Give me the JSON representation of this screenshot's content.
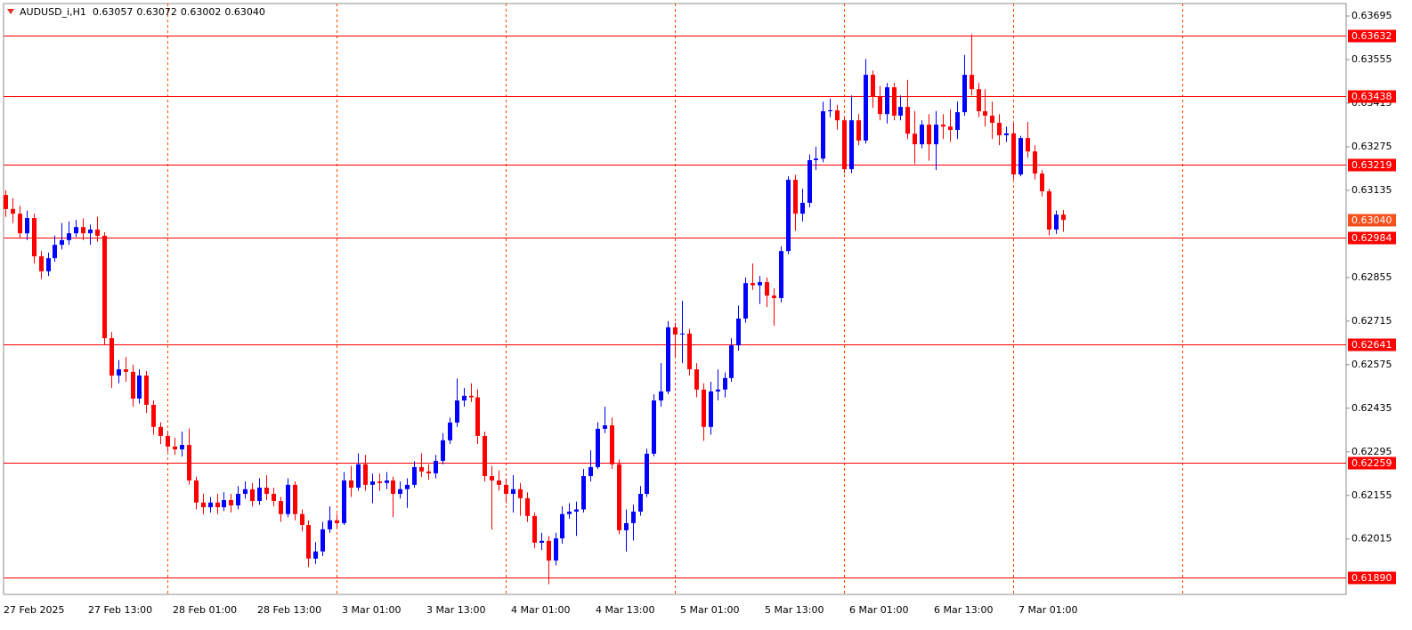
{
  "chart_data": {
    "type": "candlestick",
    "title": "AUDUSD_i,H1",
    "ohlc_labels": [
      "0.63057",
      "0.63072",
      "0.63002",
      "0.63040"
    ],
    "categories": [
      "27 Feb 2025",
      null,
      null,
      null,
      null,
      null,
      null,
      null,
      null,
      null,
      null,
      null,
      "27 Feb 13:00",
      null,
      null,
      null,
      null,
      null,
      null,
      null,
      null,
      null,
      null,
      null,
      "28 Feb 01:00",
      null,
      null,
      null,
      null,
      null,
      null,
      null,
      null,
      null,
      null,
      null,
      "28 Feb 13:00",
      null,
      null,
      null,
      null,
      null,
      null,
      null,
      null,
      null,
      null,
      null,
      "3 Mar 01:00",
      null,
      null,
      null,
      null,
      null,
      null,
      null,
      null,
      null,
      null,
      null,
      "3 Mar 13:00",
      null,
      null,
      null,
      null,
      null,
      null,
      null,
      null,
      null,
      null,
      null,
      "4 Mar 01:00",
      null,
      null,
      null,
      null,
      null,
      null,
      null,
      null,
      null,
      null,
      null,
      "4 Mar 13:00",
      null,
      null,
      null,
      null,
      null,
      null,
      null,
      null,
      null,
      null,
      null,
      "5 Mar 01:00",
      null,
      null,
      null,
      null,
      null,
      null,
      null,
      null,
      null,
      null,
      null,
      "5 Mar 13:00",
      null,
      null,
      null,
      null,
      null,
      null,
      null,
      null,
      null,
      null,
      null,
      "6 Mar 01:00",
      null,
      null,
      null,
      null,
      null,
      null,
      null,
      null,
      null,
      null,
      null,
      "6 Mar 13:00",
      null,
      null,
      null,
      null,
      null,
      null,
      null,
      null,
      null,
      null,
      null,
      "7 Mar 01:00",
      null,
      null,
      null,
      null,
      null,
      null
    ],
    "open": [
      0.6312,
      0.63075,
      0.6306,
      0.62997,
      0.63046,
      0.62923,
      0.62875,
      0.62917,
      0.6296,
      0.62975,
      0.62997,
      0.63017,
      0.62997,
      0.63009,
      0.62989,
      0.6266,
      0.6254,
      0.6256,
      0.62552,
      0.62466,
      0.6254,
      0.62446,
      0.62375,
      0.62346,
      0.62312,
      0.62303,
      0.62317,
      0.62203,
      0.62132,
      0.62117,
      0.62132,
      0.62117,
      0.6214,
      0.62123,
      0.6216,
      0.62175,
      0.62137,
      0.6218,
      0.6216,
      0.62137,
      0.62095,
      0.62189,
      0.62095,
      0.6206,
      0.61952,
      0.61975,
      0.62046,
      0.62075,
      0.62066,
      0.62203,
      0.6218,
      0.62255,
      0.62189,
      0.622,
      0.62195,
      0.62203,
      0.6216,
      0.62175,
      0.62189,
      0.62246,
      0.62232,
      0.62226,
      0.62266,
      0.62332,
      0.62389,
      0.6246,
      0.62475,
      0.6247,
      0.62346,
      0.62217,
      0.62203,
      0.62189,
      0.6216,
      0.62175,
      0.62146,
      0.62089,
      0.62003,
      0.62009,
      0.61946,
      0.62017,
      0.62095,
      0.62103,
      0.6211,
      0.62217,
      0.62246,
      0.62369,
      0.6238,
      0.62255,
      0.62043,
      0.62066,
      0.62103,
      0.6216,
      0.62289,
      0.6246,
      0.62489,
      0.62695,
      0.62672,
      0.62675,
      0.6256,
      0.62495,
      0.62375,
      0.62489,
      0.62495,
      0.62532,
      0.62637,
      0.62723,
      0.62837,
      0.6283,
      0.6284,
      0.62797,
      0.62789,
      0.6294,
      0.63169,
      0.6306,
      0.63095,
      0.63232,
      0.63237,
      0.63389,
      0.63392,
      0.6336,
      0.63203,
      0.6336,
      0.63295,
      0.63506,
      0.63437,
      0.6338,
      0.63466,
      0.63375,
      0.63403,
      0.63317,
      0.63283,
      0.63346,
      0.63283,
      0.63346,
      0.6334,
      0.63329,
      0.63386,
      0.63506,
      0.6346,
      0.63389,
      0.63375,
      0.63352,
      0.63312,
      0.63318,
      0.63186,
      0.63303,
      0.6326,
      0.63189,
      0.63132,
      0.63009,
      0.63057
    ],
    "high": [
      0.63135,
      0.6311,
      0.63085,
      0.6307,
      0.6306,
      0.6294,
      0.62935,
      0.6299,
      0.6303,
      0.63035,
      0.6304,
      0.63045,
      0.63025,
      0.6305,
      0.63,
      0.6268,
      0.6259,
      0.626,
      0.62575,
      0.6256,
      0.62555,
      0.6246,
      0.6239,
      0.6236,
      0.6234,
      0.6236,
      0.6237,
      0.62215,
      0.6216,
      0.6215,
      0.6216,
      0.62165,
      0.6216,
      0.62185,
      0.622,
      0.62195,
      0.6221,
      0.6222,
      0.6218,
      0.6215,
      0.6221,
      0.622,
      0.6211,
      0.62075,
      0.62005,
      0.6207,
      0.6212,
      0.62095,
      0.6223,
      0.6225,
      0.6229,
      0.62285,
      0.62225,
      0.62225,
      0.6223,
      0.62215,
      0.622,
      0.6221,
      0.62265,
      0.6229,
      0.62255,
      0.62285,
      0.62355,
      0.62405,
      0.6253,
      0.625,
      0.62515,
      0.62495,
      0.6236,
      0.6225,
      0.62235,
      0.6221,
      0.6222,
      0.62195,
      0.62165,
      0.621,
      0.62035,
      0.62025,
      0.62035,
      0.6212,
      0.6213,
      0.62135,
      0.6224,
      0.623,
      0.6239,
      0.6244,
      0.62405,
      0.6227,
      0.6211,
      0.62125,
      0.62185,
      0.62305,
      0.6248,
      0.6258,
      0.62715,
      0.6271,
      0.6278,
      0.6269,
      0.6258,
      0.62515,
      0.6252,
      0.6256,
      0.6255,
      0.6266,
      0.62765,
      0.62855,
      0.629,
      0.6286,
      0.62855,
      0.6282,
      0.62955,
      0.6318,
      0.63185,
      0.6314,
      0.6325,
      0.63275,
      0.6342,
      0.6343,
      0.6341,
      0.6337,
      0.6344,
      0.6338,
      0.63557,
      0.6352,
      0.6347,
      0.6348,
      0.6348,
      0.6344,
      0.6349,
      0.6339,
      0.6336,
      0.6338,
      0.6339,
      0.6338,
      0.63395,
      0.6342,
      0.6357,
      0.63637,
      0.6348,
      0.6346,
      0.6342,
      0.6338,
      0.6334,
      0.6335,
      0.6331,
      0.63355,
      0.6328,
      0.632,
      0.6314,
      0.6307,
      0.63072
    ],
    "low": [
      0.6305,
      0.6303,
      0.6298,
      0.62975,
      0.629,
      0.6285,
      0.6286,
      0.62905,
      0.62945,
      0.6296,
      0.62985,
      0.62975,
      0.6296,
      0.6297,
      0.6264,
      0.625,
      0.62515,
      0.6252,
      0.6244,
      0.6245,
      0.6242,
      0.6235,
      0.6232,
      0.62295,
      0.62285,
      0.6228,
      0.6219,
      0.6211,
      0.62095,
      0.621,
      0.62095,
      0.62105,
      0.621,
      0.6211,
      0.62145,
      0.6212,
      0.62125,
      0.6214,
      0.6212,
      0.6207,
      0.62085,
      0.62075,
      0.6204,
      0.61925,
      0.61935,
      0.6196,
      0.62035,
      0.6205,
      0.6206,
      0.6215,
      0.6217,
      0.6217,
      0.6213,
      0.6217,
      0.62175,
      0.62085,
      0.62145,
      0.62115,
      0.6218,
      0.62215,
      0.62205,
      0.6221,
      0.62255,
      0.6232,
      0.62375,
      0.6244,
      0.62455,
      0.6232,
      0.622,
      0.62045,
      0.6217,
      0.6213,
      0.621,
      0.6209,
      0.6207,
      0.61985,
      0.6198,
      0.6187,
      0.6193,
      0.62,
      0.6208,
      0.62025,
      0.621,
      0.622,
      0.6224,
      0.62355,
      0.6224,
      0.6203,
      0.61975,
      0.6201,
      0.6209,
      0.6215,
      0.6228,
      0.6244,
      0.6248,
      0.626,
      0.6258,
      0.6254,
      0.6247,
      0.6233,
      0.6235,
      0.6246,
      0.6247,
      0.6252,
      0.6262,
      0.6271,
      0.62815,
      0.6277,
      0.6276,
      0.627,
      0.62775,
      0.6293,
      0.63005,
      0.63035,
      0.6308,
      0.632,
      0.63225,
      0.6337,
      0.6333,
      0.6319,
      0.6319,
      0.6328,
      0.63285,
      0.634,
      0.6336,
      0.6335,
      0.6336,
      0.6336,
      0.633,
      0.6322,
      0.6327,
      0.6323,
      0.632,
      0.633,
      0.6329,
      0.633,
      0.63375,
      0.6344,
      0.6337,
      0.6334,
      0.633,
      0.6328,
      0.6329,
      0.6317,
      0.6318,
      0.6324,
      0.6317,
      0.63115,
      0.6299,
      0.62995,
      0.63002
    ],
    "close": [
      0.63075,
      0.6306,
      0.62997,
      0.63046,
      0.62923,
      0.62875,
      0.62917,
      0.6296,
      0.62975,
      0.62997,
      0.63017,
      0.62997,
      0.63009,
      0.62989,
      0.6266,
      0.6254,
      0.6256,
      0.62552,
      0.62466,
      0.6254,
      0.62446,
      0.62375,
      0.62346,
      0.62312,
      0.62303,
      0.62317,
      0.62203,
      0.62132,
      0.62117,
      0.62132,
      0.62117,
      0.6214,
      0.62123,
      0.6216,
      0.62175,
      0.62137,
      0.6218,
      0.6216,
      0.62137,
      0.62095,
      0.62189,
      0.62095,
      0.6206,
      0.61952,
      0.61975,
      0.62046,
      0.62075,
      0.62066,
      0.62203,
      0.6218,
      0.62255,
      0.62189,
      0.622,
      0.62195,
      0.62203,
      0.6216,
      0.62175,
      0.62189,
      0.62246,
      0.62232,
      0.62226,
      0.62266,
      0.62332,
      0.62389,
      0.6246,
      0.62475,
      0.6247,
      0.62346,
      0.62217,
      0.62203,
      0.62189,
      0.6216,
      0.62175,
      0.62146,
      0.62089,
      0.62003,
      0.62009,
      0.61946,
      0.62017,
      0.62095,
      0.62103,
      0.6211,
      0.62217,
      0.62246,
      0.62369,
      0.6238,
      0.62255,
      0.62043,
      0.62066,
      0.62103,
      0.6216,
      0.62289,
      0.6246,
      0.62489,
      0.62695,
      0.62672,
      0.62675,
      0.6256,
      0.62495,
      0.62375,
      0.62489,
      0.62495,
      0.62532,
      0.62637,
      0.62723,
      0.62837,
      0.6283,
      0.6284,
      0.62797,
      0.62789,
      0.6294,
      0.63169,
      0.6306,
      0.63095,
      0.63232,
      0.63237,
      0.63389,
      0.63392,
      0.6336,
      0.63203,
      0.6336,
      0.63295,
      0.63506,
      0.63437,
      0.6338,
      0.63466,
      0.63375,
      0.63403,
      0.63317,
      0.63283,
      0.63346,
      0.63283,
      0.63346,
      0.6334,
      0.63329,
      0.63386,
      0.63506,
      0.6346,
      0.63389,
      0.63375,
      0.63352,
      0.63312,
      0.63318,
      0.63186,
      0.63303,
      0.6326,
      0.63189,
      0.63132,
      0.63009,
      0.63057,
      0.6304
    ],
    "up_color": "#0000ff",
    "down_color": "#ff0000",
    "ylim": [
      0.61837,
      0.63735
    ],
    "yticks": [
      0.63695,
      0.63555,
      0.63415,
      0.63275,
      0.63135,
      0.62855,
      0.62715,
      0.62575,
      0.62435,
      0.62295,
      0.62155,
      0.62015
    ],
    "levels": [
      0.63632,
      0.63438,
      0.63219,
      0.62984,
      0.62641,
      0.62259,
      {
        "value": 0.6189,
        "label": "0.61890"
      }
    ],
    "level_color": "#ff0000",
    "current_price": {
      "value": 0.6304,
      "label": "0.63040"
    },
    "current_color": "#f4511e",
    "separator_color": "#ff4500",
    "grid": false
  }
}
